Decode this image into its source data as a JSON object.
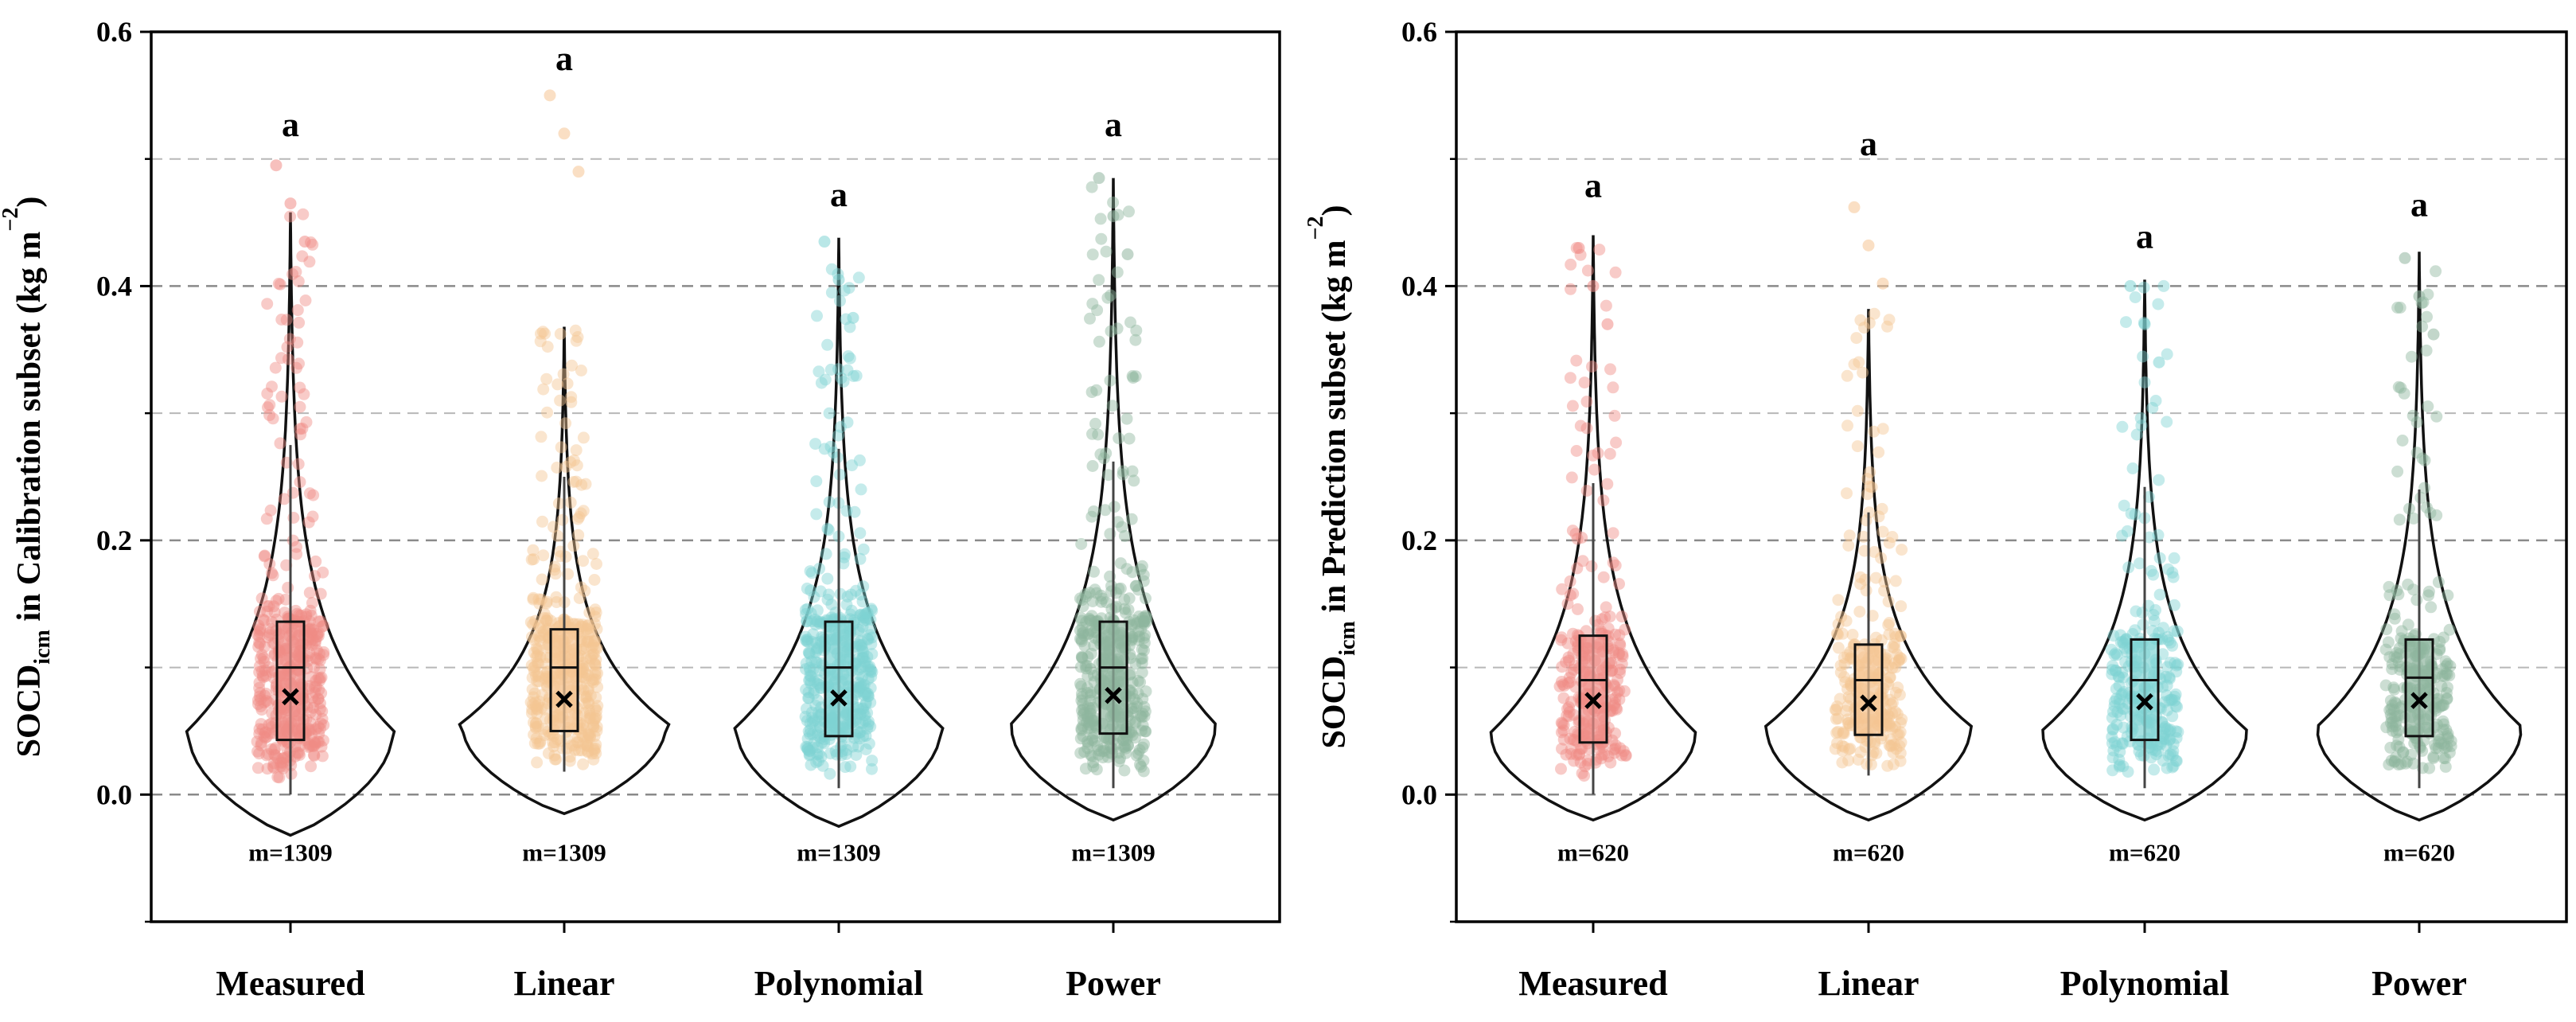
{
  "chart_data": [
    {
      "type": "violin",
      "title": "",
      "ylabel": {
        "prefix": "SOCD",
        "subscript": "icm",
        "middle": " in Calibration subset (kg m",
        "superscript": "−2",
        "suffix": ")"
      },
      "xlabel": "",
      "ylim": [
        -0.1,
        0.6
      ],
      "yticks": [
        "0.0",
        "0.2",
        "0.4",
        "0.6"
      ],
      "ytick_values": [
        0,
        0.2,
        0.4,
        0.6
      ],
      "grid": {
        "major_dashed": [
          0,
          0.2,
          0.4
        ],
        "minor_dashed": [
          0.1,
          0.3,
          0.5
        ]
      },
      "categories": [
        "Measured",
        "Linear",
        "Polynomial",
        "Power"
      ],
      "colors": [
        "#f08c86",
        "#f5c593",
        "#7fd3d3",
        "#8fb59e"
      ],
      "series": [
        {
          "name": "Measured",
          "min": 0.0,
          "q1": 0.043,
          "median": 0.1,
          "q3": 0.136,
          "max": 0.275,
          "mean": 0.077,
          "violin_min": -0.032,
          "violin_max": 0.458,
          "outliers_max": 0.495,
          "n_label": "m=1309",
          "sig_label": "a",
          "sig_y": 0.518
        },
        {
          "name": "Linear",
          "min": 0.018,
          "q1": 0.05,
          "median": 0.1,
          "q3": 0.13,
          "max": 0.25,
          "mean": 0.075,
          "violin_min": -0.015,
          "violin_max": 0.368,
          "outliers_max": 0.55,
          "n_label": "m=1309",
          "sig_label": "a",
          "sig_y": 0.57
        },
        {
          "name": "Polynomial",
          "min": 0.005,
          "q1": 0.046,
          "median": 0.1,
          "q3": 0.136,
          "max": 0.272,
          "mean": 0.076,
          "violin_min": -0.025,
          "violin_max": 0.438,
          "outliers_max": 0.435,
          "n_label": "m=1309",
          "sig_label": "a",
          "sig_y": 0.463
        },
        {
          "name": "Power",
          "min": 0.005,
          "q1": 0.048,
          "median": 0.1,
          "q3": 0.136,
          "max": 0.262,
          "mean": 0.078,
          "violin_min": -0.02,
          "violin_max": 0.485,
          "outliers_max": 0.485,
          "n_label": "m=1309",
          "sig_label": "a",
          "sig_y": 0.518
        }
      ]
    },
    {
      "type": "violin",
      "title": "",
      "ylabel": {
        "prefix": "SOCD",
        "subscript": "icm",
        "middle": " in Prediction subset (kg m",
        "superscript": "−2",
        "suffix": ")"
      },
      "xlabel": "",
      "ylim": [
        -0.1,
        0.6
      ],
      "yticks": [
        "0.0",
        "0.2",
        "0.4",
        "0.6"
      ],
      "ytick_values": [
        0,
        0.2,
        0.4,
        0.6
      ],
      "grid": {
        "major_dashed": [
          0,
          0.2,
          0.4
        ],
        "minor_dashed": [
          0.1,
          0.3,
          0.5
        ]
      },
      "categories": [
        "Measured",
        "Linear",
        "Polynomial",
        "Power"
      ],
      "colors": [
        "#f08c86",
        "#f5c593",
        "#7fd3d3",
        "#8fb59e"
      ],
      "series": [
        {
          "name": "Measured",
          "min": 0.0,
          "q1": 0.041,
          "median": 0.09,
          "q3": 0.125,
          "max": 0.245,
          "mean": 0.074,
          "violin_min": -0.02,
          "violin_max": 0.44,
          "outliers_max": 0.43,
          "n_label": "m=620",
          "sig_label": "a",
          "sig_y": 0.47
        },
        {
          "name": "Linear",
          "min": 0.015,
          "q1": 0.047,
          "median": 0.09,
          "q3": 0.118,
          "max": 0.222,
          "mean": 0.072,
          "violin_min": -0.02,
          "violin_max": 0.382,
          "outliers_max": 0.462,
          "n_label": "m=620",
          "sig_label": "a",
          "sig_y": 0.503
        },
        {
          "name": "Polynomial",
          "min": 0.005,
          "q1": 0.043,
          "median": 0.09,
          "q3": 0.122,
          "max": 0.242,
          "mean": 0.073,
          "violin_min": -0.02,
          "violin_max": 0.405,
          "outliers_max": 0.4,
          "n_label": "m=620",
          "sig_label": "a",
          "sig_y": 0.43
        },
        {
          "name": "Power",
          "min": 0.005,
          "q1": 0.046,
          "median": 0.092,
          "q3": 0.122,
          "max": 0.24,
          "mean": 0.074,
          "violin_min": -0.02,
          "violin_max": 0.427,
          "outliers_max": 0.422,
          "n_label": "m=620",
          "sig_label": "a",
          "sig_y": 0.455
        }
      ]
    }
  ]
}
